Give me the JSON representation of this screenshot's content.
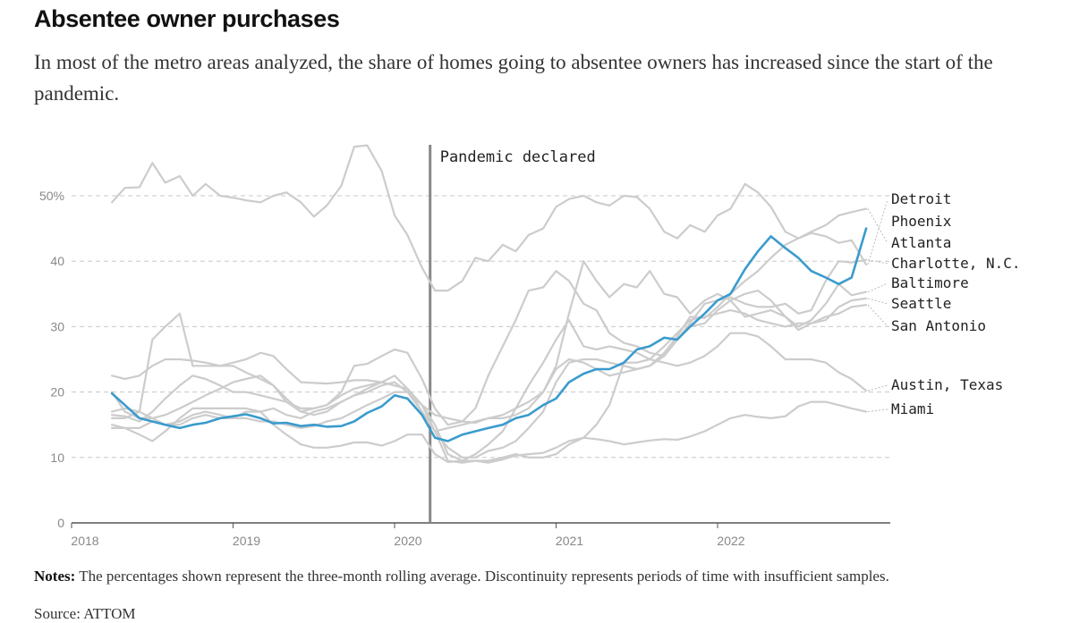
{
  "title": "Absentee owner purchases",
  "subtitle": "In most of the metro areas analyzed, the share of homes going to absentee owners has increased since the start of the pandemic.",
  "notes_label": "Notes:",
  "notes_text": "The percentages shown represent the three-month rolling average. Discontinuity represents periods of time with insufficient samples.",
  "source_label": "Source: ATTOM",
  "colors": {
    "highlight": "#3a9bcd",
    "other": "#cccccc",
    "grid": "#c8c8c8",
    "axis": "#555555",
    "event": "#888888"
  },
  "chart_data": {
    "type": "line",
    "title": "Absentee owner purchases",
    "ylabel": "",
    "xlabel": "",
    "xlim": [
      2018,
      2023
    ],
    "ylim": [
      0,
      55
    ],
    "y_ticks": [
      0,
      10,
      20,
      30,
      40,
      50
    ],
    "y_tick_labels": [
      "0",
      "10",
      "20",
      "30",
      "40",
      "50%"
    ],
    "x_ticks": [
      2018,
      2019,
      2020,
      2021,
      2022
    ],
    "x_tick_labels": [
      "2018",
      "2019",
      "2020",
      "2021",
      "2022"
    ],
    "grid": true,
    "highlight_series": "Phoenix",
    "annotation": {
      "x": 2020.22,
      "label": "Pandemic declared"
    },
    "series": [
      {
        "name": "Detroit",
        "x": [
          2018.25,
          2018.33,
          2018.42,
          2018.5,
          2018.58,
          2018.67,
          2018.75,
          2018.83,
          2018.92,
          2019,
          2019.08,
          2019.17,
          2019.25,
          2019.33,
          2019.42,
          2019.5,
          2019.58,
          2019.67,
          2019.75,
          2019.83,
          2019.92,
          2020,
          2020.08,
          2020.17,
          2020.25,
          2020.33,
          2020.42,
          2020.5,
          2020.58,
          2020.67,
          2020.75,
          2020.83,
          2020.92,
          2021,
          2021.08,
          2021.17,
          2021.25,
          2021.33,
          2021.42,
          2021.5,
          2021.58,
          2021.67,
          2021.75,
          2021.83,
          2021.92,
          2022,
          2022.08,
          2022.17,
          2022.25,
          2022.33,
          2022.42,
          2022.5,
          2022.58,
          2022.67,
          2022.75,
          2022.83,
          2022.92
        ],
        "y": [
          49,
          51.2,
          51.3,
          55,
          52,
          53,
          50,
          51.8,
          50,
          49.7,
          49.3,
          49,
          50,
          50.5,
          49,
          46.8,
          48.5,
          51.5,
          57.5,
          57.7,
          53.8,
          47,
          44,
          39,
          35.5,
          35.5,
          37,
          40.5,
          40,
          42.5,
          41.5,
          44,
          45,
          48.3,
          49.5,
          50,
          49,
          48.5,
          50,
          49.8,
          48,
          44.5,
          43.5,
          45.5,
          44.5,
          47,
          48,
          51.8,
          50.5,
          48.3,
          44.5,
          43.5,
          44.3,
          43.8,
          42.8,
          43.2,
          39.5
        ]
      },
      {
        "name": "Atlanta",
        "x": [
          2018.25,
          2018.33,
          2018.42,
          2018.5,
          2018.58,
          2018.67,
          2018.75,
          2018.83,
          2018.92,
          2019,
          2019.08,
          2019.17,
          2019.25,
          2019.33,
          2019.42,
          2019.5,
          2019.58,
          2019.67,
          2019.75,
          2019.83,
          2019.92,
          2020,
          2020.08,
          2020.17,
          2020.25,
          2020.33,
          2020.42,
          2020.5,
          2020.58,
          2020.67,
          2020.75,
          2020.83,
          2020.92,
          2021,
          2021.08,
          2021.17,
          2021.25,
          2021.33,
          2021.42,
          2021.5,
          2021.58,
          2021.67,
          2021.75,
          2021.83,
          2021.92,
          2022,
          2022.08,
          2022.17,
          2022.25,
          2022.33,
          2022.42,
          2022.5,
          2022.58,
          2022.67,
          2022.75,
          2022.83,
          2022.92
        ],
        "y": [
          22.5,
          22,
          22.5,
          24,
          25,
          25,
          24.8,
          24.5,
          24,
          24.5,
          25,
          26,
          25.5,
          23.5,
          21.5,
          21.4,
          21.3,
          21.5,
          21.8,
          21.8,
          21.5,
          21,
          20.5,
          18,
          16.5,
          16,
          15.5,
          15.3,
          16,
          16,
          16.5,
          17.5,
          20,
          23.5,
          25,
          24.5,
          23.5,
          22.5,
          23,
          23.5,
          24,
          26,
          28.5,
          31.5,
          31.3,
          33,
          35,
          37,
          38.5,
          40.5,
          42.5,
          43.5,
          44.5,
          45.5,
          47,
          47.5,
          48
        ]
      },
      {
        "name": "Charlotte, N.C.",
        "x": [
          2018.25,
          2018.33,
          2018.42,
          2018.5,
          2018.58,
          2018.67,
          2018.75,
          2018.83,
          2018.92,
          2019,
          2019.08,
          2019.17,
          2019.25,
          2019.33,
          2019.42,
          2019.5,
          2019.58,
          2019.67,
          2019.75,
          2019.83,
          2019.92,
          2020,
          2020.08,
          2020.17,
          2020.25,
          2020.33,
          2020.42,
          2020.5,
          2020.58,
          2020.67,
          2020.75,
          2020.83,
          2020.92,
          2021,
          2021.08,
          2021.17,
          2021.25,
          2021.33,
          2021.42,
          2021.5,
          2021.58,
          2021.67,
          2021.75,
          2021.83,
          2021.92,
          2022,
          2022.08,
          2022.17,
          2022.25,
          2022.33,
          2022.42,
          2022.5,
          2022.58,
          2022.67,
          2022.75,
          2022.83,
          2022.92
        ],
        "y": [
          16.5,
          16.3,
          15.5,
          17,
          19,
          21,
          22.5,
          22,
          21,
          20,
          20,
          19.5,
          19,
          18.5,
          17.5,
          17.5,
          18,
          20,
          24,
          24.3,
          25.5,
          26.5,
          26,
          22,
          17.5,
          15,
          15.5,
          17.5,
          22.5,
          27,
          31,
          35.5,
          36,
          38.5,
          37,
          33.5,
          32.5,
          29,
          27.5,
          27,
          26,
          25.5,
          28,
          30.5,
          33.5,
          34,
          34.5,
          33.5,
          33,
          33,
          33.5,
          32,
          32.5,
          37,
          40,
          39.8,
          40.2
        ]
      },
      {
        "name": "Baltimore",
        "x": [
          2018.25,
          2018.33,
          2018.42,
          2018.5,
          2018.58,
          2018.67,
          2018.75,
          2018.83,
          2018.92,
          2019,
          2019.08,
          2019.17,
          2019.25,
          2019.33,
          2019.42,
          2019.5,
          2019.58,
          2019.67,
          2019.75,
          2019.83,
          2019.92,
          2020,
          2020.08,
          2020.17,
          2020.25,
          2020.33,
          2020.42,
          2020.5,
          2020.58,
          2020.67,
          2020.75,
          2020.83,
          2020.92,
          2021,
          2021.08,
          2021.17,
          2021.25,
          2021.33,
          2021.42,
          2021.5,
          2021.58,
          2021.67,
          2021.75,
          2021.83,
          2021.92,
          2022,
          2022.08,
          2022.17,
          2022.25,
          2022.33,
          2022.42,
          2022.5,
          2022.58,
          2022.67,
          2022.75,
          2022.83,
          2022.92
        ],
        "y": [
          16,
          16,
          17,
          28,
          30,
          32,
          24,
          24,
          24,
          24,
          23,
          22,
          21,
          18.5,
          17,
          17.5,
          18,
          19.5,
          20.5,
          21,
          21.5,
          21,
          20.5,
          17,
          14,
          14.5,
          15,
          15.5,
          16,
          16.5,
          17.5,
          18.5,
          20,
          24,
          32,
          40,
          37,
          34.5,
          36.5,
          36,
          38.5,
          35,
          34.5,
          32,
          34,
          35,
          34,
          31.5,
          32,
          32.5,
          31.5,
          30,
          31,
          33.5,
          36.5,
          34.8,
          35.3
        ]
      },
      {
        "name": "Seattle",
        "x": [
          2018.25,
          2018.33,
          2018.42,
          2018.5,
          2018.58,
          2018.67,
          2018.75,
          2018.83,
          2018.92,
          2019,
          2019.08,
          2019.17,
          2019.25,
          2019.33,
          2019.42,
          2019.5,
          2019.58,
          2019.67,
          2019.75,
          2019.83,
          2019.92,
          2020,
          2020.08,
          2020.17,
          2020.25,
          2020.33,
          2020.42,
          2020.5,
          2020.58,
          2020.67,
          2020.75,
          2020.83,
          2020.92,
          2021,
          2021.08,
          2021.17,
          2021.25,
          2021.33,
          2021.42,
          2021.5,
          2021.58,
          2021.67,
          2021.75,
          2021.83,
          2021.92,
          2022,
          2022.08,
          2022.17,
          2022.25,
          2022.33,
          2022.42,
          2022.5,
          2022.58,
          2022.67,
          2022.75,
          2022.83,
          2022.92
        ],
        "y": [
          17,
          17.5,
          17,
          16,
          16.5,
          17.5,
          18.5,
          19.5,
          20.5,
          21.5,
          22,
          22.5,
          21,
          19,
          17,
          16.5,
          17,
          18.5,
          19.5,
          20.5,
          21.5,
          22.5,
          20.5,
          18,
          15,
          10.5,
          9.5,
          10.5,
          12,
          14,
          17.5,
          21,
          24.5,
          28,
          31,
          27,
          26.5,
          27,
          26.5,
          26,
          25,
          27,
          29,
          31,
          31.5,
          32,
          32.5,
          32,
          31,
          30.5,
          30,
          30.5,
          30.5,
          31,
          33,
          34,
          34.3
        ]
      },
      {
        "name": "San Antonio",
        "x": [
          2018.25,
          2018.33,
          2018.42,
          2018.5,
          2018.58,
          2018.67,
          2018.75,
          2018.83,
          2018.92,
          2019,
          2019.08,
          2019.17,
          2019.25,
          2019.33,
          2019.42,
          2019.5,
          2019.58,
          2019.67,
          2019.75,
          2019.83,
          2019.92,
          2020,
          2020.08,
          2020.17,
          2020.25,
          2020.33,
          2020.42,
          2020.5,
          2020.58,
          2020.67,
          2020.75,
          2020.83,
          2020.92,
          2021,
          2021.08,
          2021.17,
          2021.25,
          2021.33,
          2021.42,
          2021.5,
          2021.58,
          2021.67,
          2021.75,
          2021.83,
          2021.92,
          2022,
          2022.08,
          2022.17,
          2022.25,
          2022.33,
          2022.42,
          2022.5,
          2022.58,
          2022.67,
          2022.75,
          2022.83,
          2022.92
        ],
        "y": [
          15,
          14.5,
          14.5,
          15.5,
          15,
          15,
          16,
          16.5,
          16,
          16,
          17,
          17,
          17.5,
          16.5,
          16,
          17,
          17.5,
          18.5,
          19.5,
          20,
          21,
          21.5,
          20,
          17,
          14,
          11.5,
          10,
          10,
          11,
          11.5,
          12.5,
          14.5,
          17,
          21.5,
          24.5,
          25,
          25,
          24.5,
          24,
          23.5,
          24,
          25.5,
          28,
          30,
          30.5,
          32.5,
          34,
          35,
          35.5,
          34,
          31.5,
          29.5,
          30.5,
          31.5,
          32,
          33,
          33.3
        ]
      },
      {
        "name": "Austin, Texas",
        "x": [
          2018.25,
          2018.33,
          2018.42,
          2018.5,
          2018.58,
          2018.67,
          2018.75,
          2018.83,
          2018.92,
          2019,
          2019.08,
          2019.17,
          2019.25,
          2019.33,
          2019.42,
          2019.5,
          2019.58,
          2019.67,
          2019.75,
          2019.83,
          2019.92,
          2020,
          2020.08,
          2020.17,
          2020.25,
          2020.33,
          2020.42,
          2020.5,
          2020.58,
          2020.67,
          2020.75,
          2020.83,
          2020.92,
          2021,
          2021.08,
          2021.17,
          2021.25,
          2021.33,
          2021.42,
          2021.5,
          2021.58,
          2021.67,
          2021.75,
          2021.83,
          2021.92,
          2022,
          2022.08,
          2022.17,
          2022.25,
          2022.33,
          2022.42,
          2022.5,
          2022.58,
          2022.67,
          2022.75,
          2022.83,
          2022.92
        ],
        "y": [
          20,
          17,
          16,
          16,
          15,
          15.5,
          16.5,
          17,
          16.5,
          16,
          16,
          15.5,
          15.5,
          15,
          14.5,
          14.8,
          15.5,
          16,
          17,
          18,
          19,
          20,
          20,
          18,
          14,
          9.5,
          9.2,
          9.5,
          9.5,
          10,
          10.5,
          10,
          10,
          10.5,
          12,
          13,
          15,
          18,
          24.5,
          24.5,
          25,
          24.5,
          24,
          24.5,
          25.5,
          27,
          29,
          29,
          28.5,
          27,
          25,
          25,
          25,
          24.5,
          23,
          22,
          20.2
        ]
      },
      {
        "name": "Miami",
        "x": [
          2018.25,
          2018.33,
          2018.42,
          2018.5,
          2018.58,
          2018.67,
          2018.75,
          2018.83,
          2018.92,
          2019,
          2019.08,
          2019.17,
          2019.25,
          2019.33,
          2019.42,
          2019.5,
          2019.58,
          2019.67,
          2019.75,
          2019.83,
          2019.92,
          2020,
          2020.08,
          2020.17,
          2020.25,
          2020.33,
          2020.42,
          2020.5,
          2020.58,
          2020.67,
          2020.75,
          2020.83,
          2020.92,
          2021,
          2021.08,
          2021.17,
          2021.25,
          2021.33,
          2021.42,
          2021.5,
          2021.58,
          2021.67,
          2021.75,
          2021.83,
          2021.92,
          2022,
          2022.08,
          2022.17,
          2022.25,
          2022.33,
          2022.42,
          2022.5,
          2022.58,
          2022.67,
          2022.75,
          2022.83,
          2022.92
        ],
        "y": [
          14.5,
          14.5,
          13.5,
          12.5,
          14,
          16,
          17.5,
          17.5,
          17.5,
          17.5,
          17.5,
          17,
          15,
          13.5,
          12,
          11.5,
          11.5,
          11.8,
          12.3,
          12.3,
          11.8,
          12.5,
          13.5,
          13.5,
          10.5,
          9.3,
          9.5,
          9.5,
          9.2,
          9.7,
          10.3,
          10.5,
          10.7,
          11.5,
          12.5,
          13,
          12.8,
          12.5,
          12,
          12.3,
          12.6,
          12.8,
          12.7,
          13.2,
          14,
          15,
          16,
          16.5,
          16.2,
          16,
          16.3,
          17.8,
          18.5,
          18.5,
          18,
          17.5,
          17
        ]
      },
      {
        "name": "Phoenix",
        "x": [
          2018.25,
          2018.33,
          2018.42,
          2018.5,
          2018.58,
          2018.67,
          2018.75,
          2018.83,
          2018.92,
          2019,
          2019.08,
          2019.17,
          2019.25,
          2019.33,
          2019.42,
          2019.5,
          2019.58,
          2019.67,
          2019.75,
          2019.83,
          2019.92,
          2020,
          2020.08,
          2020.17,
          2020.25,
          2020.33,
          2020.42,
          2020.5,
          2020.58,
          2020.67,
          2020.75,
          2020.83,
          2020.92,
          2021,
          2021.08,
          2021.17,
          2021.25,
          2021.33,
          2021.42,
          2021.5,
          2021.58,
          2021.67,
          2021.75,
          2021.83,
          2021.92,
          2022,
          2022.08,
          2022.17,
          2022.25,
          2022.33,
          2022.42,
          2022.5,
          2022.58,
          2022.67,
          2022.75,
          2022.83,
          2022.92
        ],
        "y": [
          19.8,
          18,
          16,
          15.5,
          15,
          14.5,
          15,
          15.3,
          16,
          16.3,
          16.6,
          16,
          15.2,
          15.3,
          14.8,
          15,
          14.7,
          14.8,
          15.5,
          16.8,
          17.8,
          19.5,
          19,
          16.5,
          13,
          12.5,
          13.5,
          14,
          14.5,
          15,
          16,
          16.5,
          18,
          19,
          21.5,
          22.8,
          23.5,
          23.5,
          24.5,
          26.5,
          27,
          28.3,
          28,
          30,
          32,
          34,
          35,
          38.8,
          41.5,
          43.8,
          42,
          40.5,
          38.5,
          37.5,
          36.5,
          37.5,
          45
        ]
      }
    ],
    "labels": [
      "Detroit",
      "Phoenix",
      "Atlanta",
      "Charlotte, N.C.",
      "Baltimore",
      "Seattle",
      "San Antonio",
      "Austin, Texas",
      "Miami"
    ]
  }
}
